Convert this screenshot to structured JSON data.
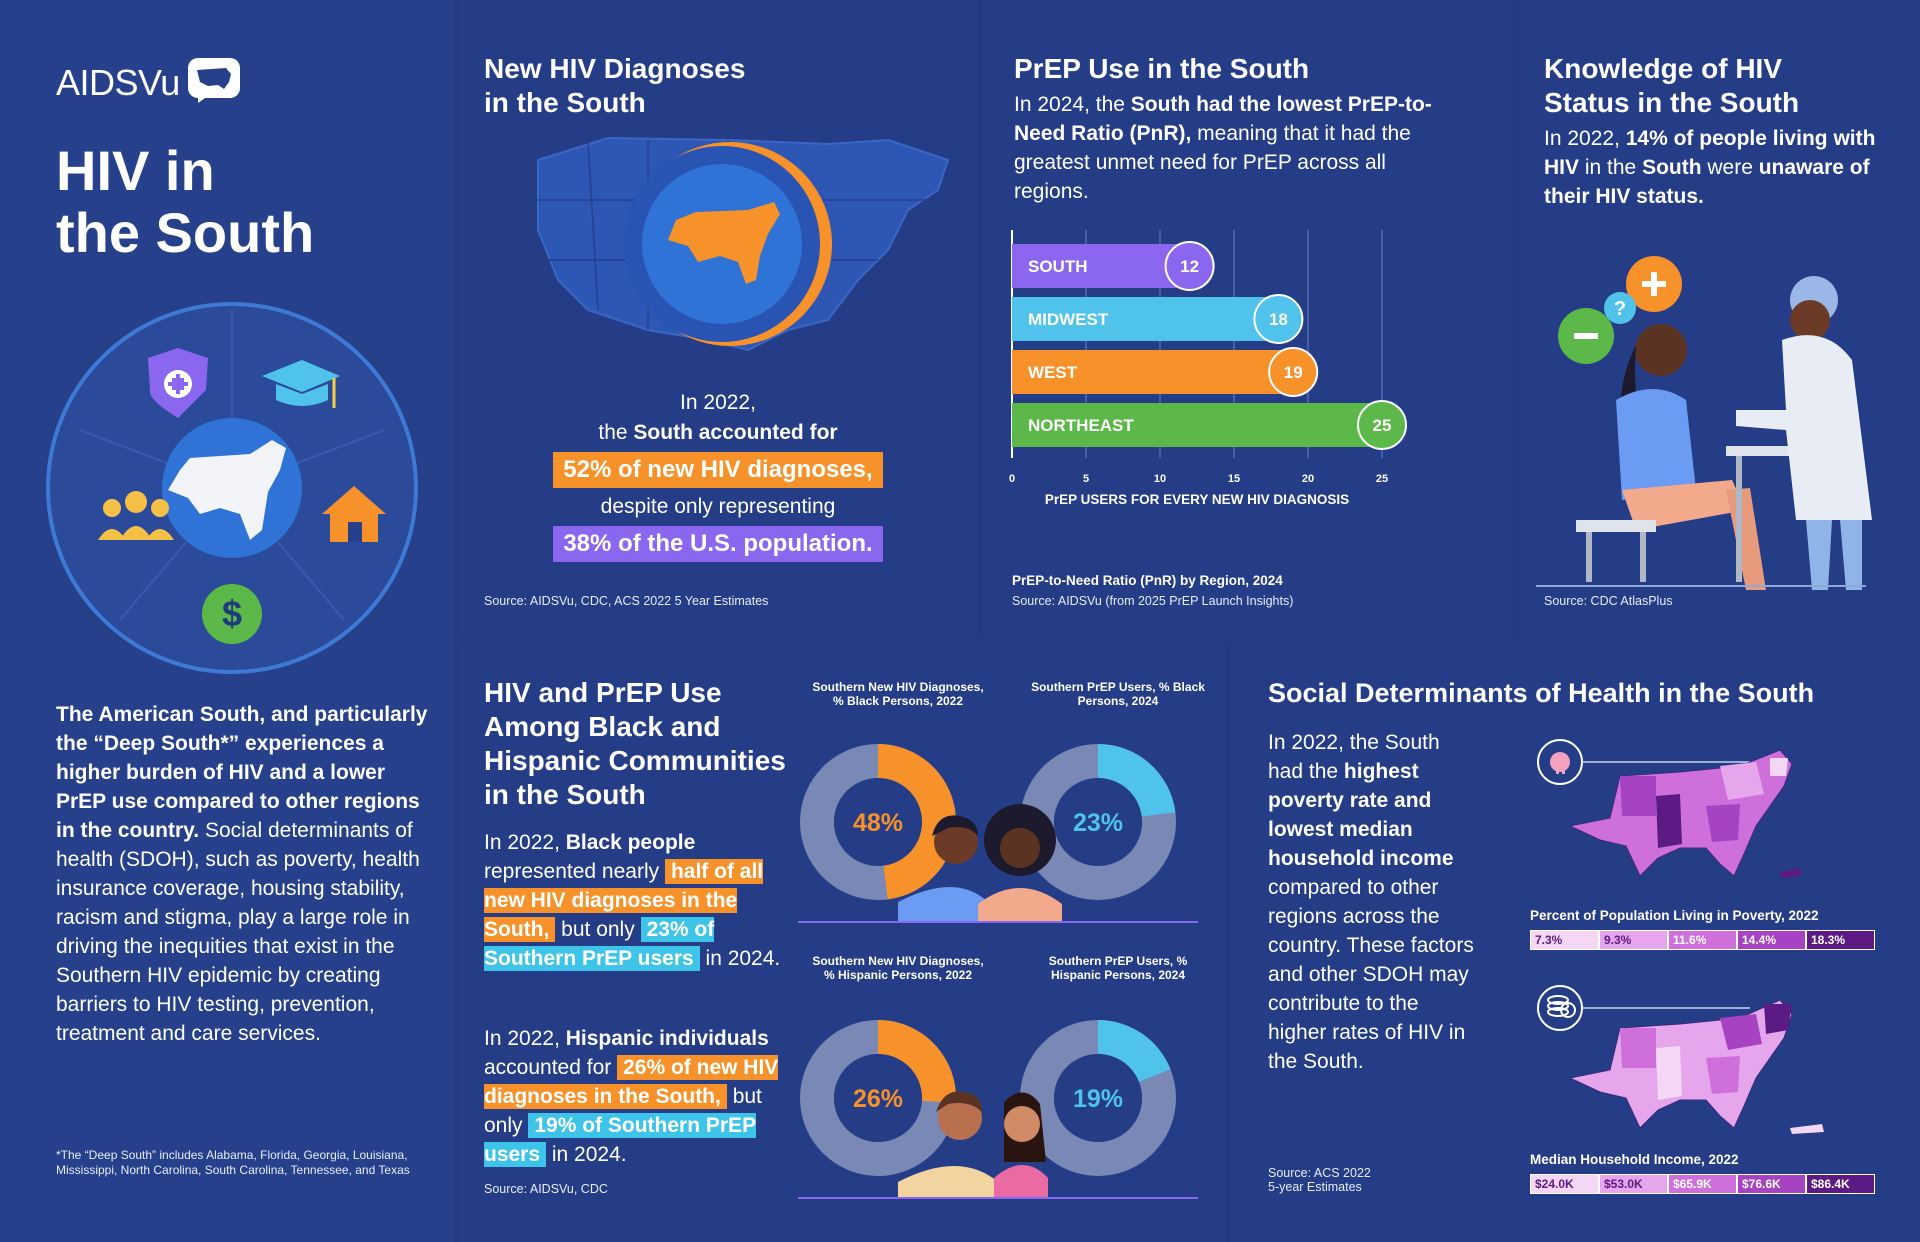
{
  "brand": {
    "logo_text": "AIDSVu"
  },
  "intro": {
    "title_line1": "HIV in",
    "title_line2": "the South",
    "para_bold": "The American South, and particularly the “Deep South*” experiences a higher burden of HIV and a lower PrEP use compared to other regions in the country.",
    "para_rest": " Social determinants of health (SDOH), such as poverty, health insurance coverage, housing stability, racism and stigma, play a large role in driving the inequities that exist in the Southern HIV epidemic by creating barriers to HIV testing, prevention, treatment and care services.",
    "footnote": "*The “Deep South” includes Alabama, Florida, Georgia, Louisiana, Mississippi, North Carolina, South Carolina, Tennessee, and Texas"
  },
  "diagnoses": {
    "title_line1": "New HIV Diagnoses",
    "title_line2": "in the South",
    "line1": "In 2022,",
    "line2_pre": "the ",
    "line2_bold": "South accounted for",
    "hl1": "52% of new HIV diagnoses,",
    "line3": "despite only representing",
    "hl2": "38% of the U.S. population.",
    "source": "Source: AIDSVu, CDC, ACS 2022 5 Year Estimates"
  },
  "prep": {
    "title": "PrEP Use in the South",
    "desc_pre": "In 2024, the ",
    "desc_bold": "South had the lowest PrEP-to-Need Ratio (PnR),",
    "desc_post": " meaning that it had the greatest unmet need for PrEP across all regions.",
    "chart_subtitle": "PrEP-to-Need Ratio (PnR) by Region, 2024",
    "source": "Source: AIDSVu (from 2025 PrEP Launch Insights)"
  },
  "chart_data": {
    "type": "bar",
    "orientation": "horizontal",
    "categories": [
      "SOUTH",
      "MIDWEST",
      "WEST",
      "NORTHEAST"
    ],
    "values": [
      12,
      18,
      19,
      25
    ],
    "colors": [
      "#8b67f0",
      "#4fc3ec",
      "#f7922a",
      "#5cb848"
    ],
    "xlabel": "PrEP USERS FOR EVERY NEW HIV DIAGNOSIS",
    "xlim": [
      0,
      25
    ],
    "xticks": [
      "0",
      "5",
      "10",
      "15",
      "20",
      "25"
    ],
    "grid": true
  },
  "knowledge": {
    "title_line1": "Knowledge of HIV",
    "title_line2": "Status in the South",
    "desc_pre": "In 2022, ",
    "desc_bold1": "14% of people living with HIV",
    "desc_mid": " in the ",
    "desc_bold2": "South",
    "desc_mid2": " were ",
    "desc_bold3": "unaware of their HIV status.",
    "source": "Source: CDC AtlasPlus"
  },
  "communities": {
    "title": "HIV and PrEP Use Among Black and Hispanic Communities in the South",
    "p1_pre": "In 2022, ",
    "p1_bold": "Black people",
    "p1_mid": " represented nearly ",
    "p1_hl1": "half of all new HIV diagnoses in the South,",
    "p1_mid2": " but only ",
    "p1_hl2": "23% of Southern PrEP users",
    "p1_post": " in 2024.",
    "p2_pre": "In 2022, ",
    "p2_bold": "Hispanic individuals",
    "p2_mid": " accounted for ",
    "p2_hl1": "26% of new HIV diagnoses in the South,",
    "p2_mid2": " but only ",
    "p2_hl2": "19% of Southern PrEP users",
    "p2_post": " in 2024.",
    "source": "Source: AIDSVu, CDC",
    "donuts": [
      {
        "label": "Southern New HIV Diagnoses, % Black Persons, 2022",
        "value": 48,
        "display": "48%",
        "color": "#f7922a"
      },
      {
        "label": "Southern PrEP Users, % Black Persons, 2024",
        "value": 23,
        "display": "23%",
        "color": "#4fc3ec"
      },
      {
        "label": "Southern New HIV Diagnoses, % Hispanic Persons, 2022",
        "value": 26,
        "display": "26%",
        "color": "#f7922a"
      },
      {
        "label": "Southern PrEP Users, % Hispanic Persons, 2024",
        "value": 19,
        "display": "19%",
        "color": "#4fc3ec"
      }
    ]
  },
  "sdoh": {
    "title": "Social Determinants of Health in the South",
    "desc_pre": "In 2022, the South had the ",
    "desc_bold": "highest poverty rate and lowest median household income",
    "desc_post": " compared to other regions across the country. These factors and other SDOH may contribute to the higher rates of HIV in the South.",
    "source_line1": "Source: ACS 2022",
    "source_line2": "5-year Estimates",
    "poverty_title": "Percent of Population Living in Poverty, 2022",
    "poverty_legend": [
      "7.3%",
      "9.3%",
      "11.6%",
      "14.4%",
      "18.3%"
    ],
    "poverty_colors": [
      "#f3d7f4",
      "#e6a6ec",
      "#cf6fdc",
      "#a742c3",
      "#5c1a84"
    ],
    "income_title": "Median Household Income, 2022",
    "income_legend": [
      "$24.0K",
      "$53.0K",
      "$65.9K",
      "$76.6K",
      "$86.4K"
    ],
    "income_colors": [
      "#f3d7f4",
      "#e6a6ec",
      "#cf6fdc",
      "#a742c3",
      "#5c1a84"
    ]
  }
}
